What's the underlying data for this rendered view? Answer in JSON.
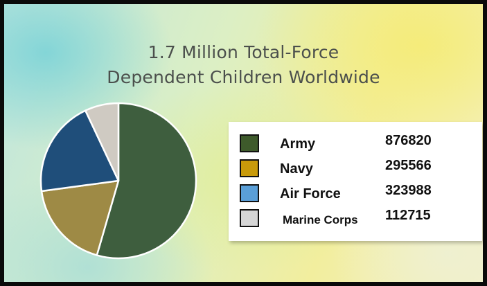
{
  "chart_data": {
    "type": "pie",
    "title": "1.7 Million Total-Force",
    "subtitle": "Dependent Children Worldwide",
    "slices": [
      {
        "label": "Army",
        "value": 876820,
        "value_label": "876820",
        "color": "#3e5e3e"
      },
      {
        "label": "Navy",
        "value": 295566,
        "value_label": "295566",
        "color": "#9e8a45"
      },
      {
        "label": "Air Force",
        "value": 323988,
        "value_label": "323988",
        "color": "#1f4e7a"
      },
      {
        "label": "Marine Corps",
        "value": 112715,
        "value_label": "112715",
        "color": "#cfcac2"
      }
    ],
    "legend_colors": [
      "#3e5a2b",
      "#c89a0a",
      "#5a9fd8",
      "#d6d6d6"
    ],
    "legend_position": "right"
  }
}
